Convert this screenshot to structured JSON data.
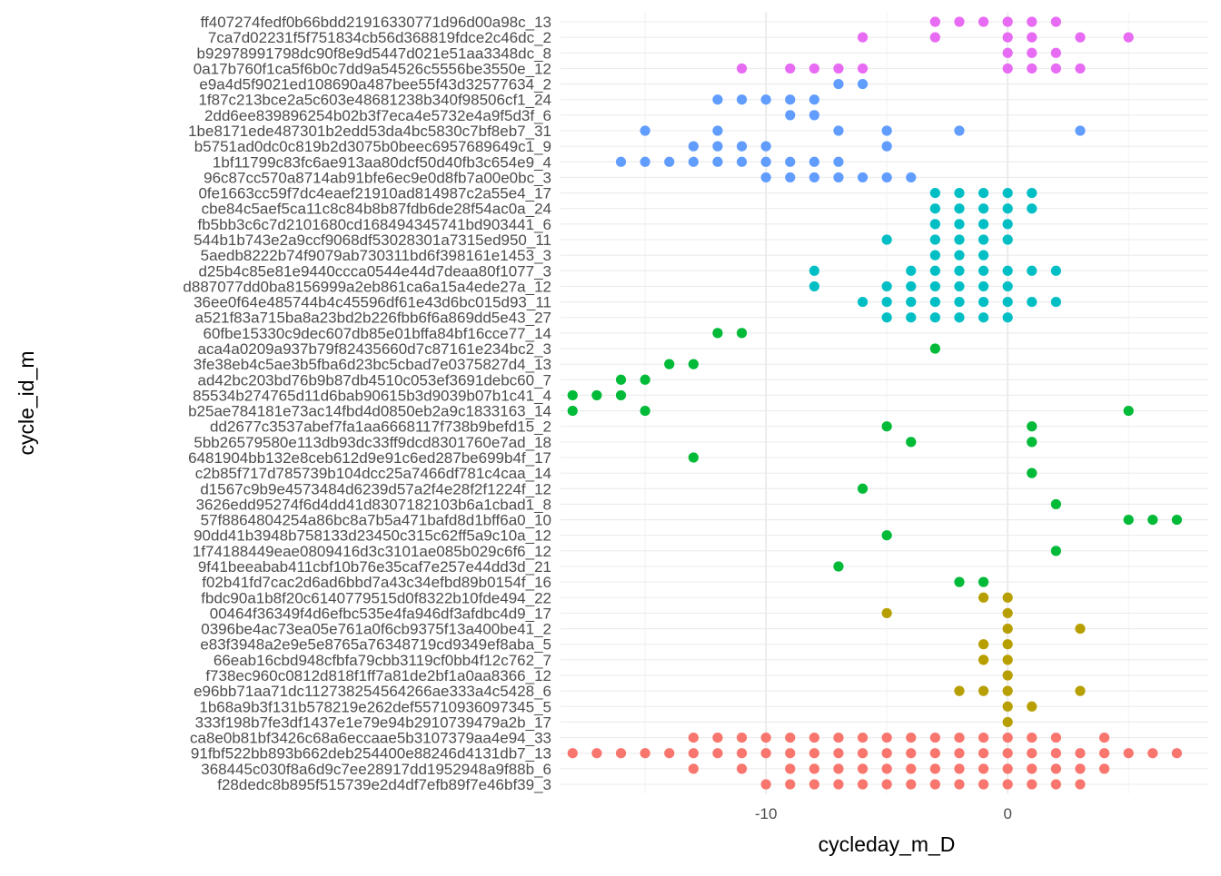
{
  "chart_data": {
    "type": "scatter",
    "title": "",
    "xlabel": "cycleday_m_D",
    "ylabel": "cycle_id_m",
    "xlim": [
      -18.5,
      8.3
    ],
    "x_ticks": [
      -10,
      0
    ],
    "x_tick_labels": [
      "-10",
      "0"
    ],
    "x_minor_ticks": [
      -15,
      -5,
      5
    ],
    "grid": true,
    "legend": "none",
    "categories": [
      "ff407274fedf0b66bdd21916330771d96d00a98c_13",
      "7ca7d02231f5f751834cb56d368819fdce2c46dc_2",
      "b92978991798dc90f8e9d5447d021e51aa3348dc_8",
      "0a17b760f1ca5f6b0c7dd9a54526c5556be3550e_12",
      "e9a4d5f9021ed108690a487bee55f43d32577634_2",
      "1f87c213bce2a5c603e48681238b340f98506cf1_24",
      "2dd6ee839896254b02b3f7eca4e5732e4a9f5d3f_6",
      "1be8171ede487301b2edd53da4bc5830c7bf8eb7_31",
      "b5751ad0dc0c819b2d3075b0beec6957689649c1_9",
      "1bf11799c83fc6ae913aa80dcf50d40fb3c654e9_4",
      "96c87cc570a8714ab91bfe6ec9e0d8fb7a00e0bc_3",
      "0fe1663cc59f7dc4eaef21910ad814987c2a55e4_17",
      "cbe84c5aef5ca11c8c84b8b87fdb6de28f54ac0a_24",
      "fb5bb3c6c7d2101680cd168494345741bd903441_6",
      "544b1b743e2a9ccf9068df53028301a7315ed950_11",
      "5aedb8222b74f9079ab730311bd6f398161e1453_3",
      "d25b4c85e81e9440ccca0544e44d7deaa80f1077_3",
      "d887077dd0ba8156999a2eb861ca6a15a4ede27a_12",
      "36ee0f64e485744b4c45596df61e43d6bc015d93_11",
      "a521f83a715ba8a23bd2b226fbb6f6a869dd5e43_27",
      "60fbe15330c9dec607db85e01bffa84bf16cce77_14",
      "aca4a0209a937b79f82435660d7c87161e234bc2_3",
      "3fe38eb4c5ae3b5fba6d23bc5cbad7e0375827d4_13",
      "ad42bc203bd76b9b87db4510c053ef3691debc60_7",
      "85534b274765d11d6bab90615b3d9039b07b1c41_4",
      "b25ae784181e73ac14fbd4d0850eb2a9c1833163_14",
      "dd2677c3537abef7fa1aa6668117f738b9befd15_2",
      "5bb26579580e113db93dc33ff9dcd8301760e7ad_18",
      "6481904bb132e8ceb612d9e91c6ed287be699b4f_17",
      "c2b85f717d785739b104dcc25a7466df781c4caa_14",
      "d1567c9b9e4573484d6239d57a2f4e28f2f1224f_12",
      "3626edd95274f6d4dd41d8307182103b6a1cbad1_8",
      "57f8864804254a86bc8a7b5a471bafd8d1bff6a0_10",
      "90dd41b3948b758133d23450c315c62ff5a9c10a_12",
      "1f74188449eae0809416d3c3101ae085b029c6f6_12",
      "9f41beeabab411cbf10b76e35caf7e257e44dd3d_21",
      "f02b41fd7cac2d6ad6bbd7a43c34efbd89b0154f_16",
      "fbdc90a1b8f20c6140779515d0f8322b10fde494_22",
      "00464f36349f4d6efbc535e4fa946df3afdbc4d9_17",
      "0396be4ac73ea05e761a0f6cb9375f13a400be41_2",
      "e83f3948a2e9e5e8765a76348719cd9349ef8aba_5",
      "66eab16cbd948cfbfa79cbb3119cf0bb4f12c762_7",
      "f738ec960c0812d818f1ff7a81de2bf1a0aa8366_12",
      "e96bb71aa71dc112738254564266ae333a4c5428_6",
      "1b68a9b3f131b578219e262def55710936097345_5",
      "333f198b7fe3df1437e1e79e94b2910739479a2b_17",
      "ca8e0b81bf3426c68a6eccaae5b3107379aa4e94_33",
      "91fbf522bb893b662deb254400e88246d4131db7_13",
      "368445c030f8a6d9c7ee28917dd1952948a9f88b_6",
      "f28dedc8b895f515739e2d4df7efb89f7e46bf39_3"
    ],
    "series": [
      {
        "color": "#E76BF3",
        "points": [
          {
            "y": "ff407274fedf0b66bdd21916330771d96d00a98c_13",
            "x": [
              -3,
              -2,
              -1,
              0,
              1,
              2
            ]
          },
          {
            "y": "7ca7d02231f5f751834cb56d368819fdce2c46dc_2",
            "x": [
              -6,
              -3,
              0,
              1,
              3,
              5
            ]
          },
          {
            "y": "b92978991798dc90f8e9d5447d021e51aa3348dc_8",
            "x": [
              0,
              1,
              2
            ]
          },
          {
            "y": "0a17b760f1ca5f6b0c7dd9a54526c5556be3550e_12",
            "x": [
              -11,
              -9,
              -8,
              -7,
              -6,
              0,
              1,
              2,
              3
            ]
          }
        ]
      },
      {
        "color": "#619CFF",
        "points": [
          {
            "y": "e9a4d5f9021ed108690a487bee55f43d32577634_2",
            "x": [
              -7,
              -6
            ]
          },
          {
            "y": "1f87c213bce2a5c603e48681238b340f98506cf1_24",
            "x": [
              -12,
              -11,
              -10,
              -9,
              -8
            ]
          },
          {
            "y": "2dd6ee839896254b02b3f7eca4e5732e4a9f5d3f_6",
            "x": [
              -9,
              -8
            ]
          },
          {
            "y": "1be8171ede487301b2edd53da4bc5830c7bf8eb7_31",
            "x": [
              -15,
              -12,
              -7,
              -5,
              -2,
              3
            ]
          },
          {
            "y": "b5751ad0dc0c819b2d3075b0beec6957689649c1_9",
            "x": [
              -13,
              -12,
              -11,
              -10,
              -5
            ]
          },
          {
            "y": "1bf11799c83fc6ae913aa80dcf50d40fb3c654e9_4",
            "x": [
              -16,
              -15,
              -14,
              -13,
              -12,
              -11,
              -10,
              -9,
              -8,
              -7
            ]
          },
          {
            "y": "96c87cc570a8714ab91bfe6ec9e0d8fb7a00e0bc_3",
            "x": [
              -10,
              -9,
              -8,
              -7,
              -6,
              -5,
              -4
            ]
          }
        ]
      },
      {
        "color": "#00BFC4",
        "points": [
          {
            "y": "0fe1663cc59f7dc4eaef21910ad814987c2a55e4_17",
            "x": [
              -3,
              -2,
              -1,
              0,
              1
            ]
          },
          {
            "y": "cbe84c5aef5ca11c8c84b8b87fdb6de28f54ac0a_24",
            "x": [
              -3,
              -2,
              -1,
              0,
              1
            ]
          },
          {
            "y": "fb5bb3c6c7d2101680cd168494345741bd903441_6",
            "x": [
              -3,
              -2,
              -1,
              0
            ]
          },
          {
            "y": "544b1b743e2a9ccf9068df53028301a7315ed950_11",
            "x": [
              -5,
              -3,
              -2,
              -1,
              0
            ]
          },
          {
            "y": "5aedb8222b74f9079ab730311bd6f398161e1453_3",
            "x": [
              -3,
              -2,
              -1
            ]
          },
          {
            "y": "d25b4c85e81e9440ccca0544e44d7deaa80f1077_3",
            "x": [
              -8,
              -4,
              -3,
              -2,
              -1,
              0,
              1,
              2
            ]
          },
          {
            "y": "d887077dd0ba8156999a2eb861ca6a15a4ede27a_12",
            "x": [
              -8,
              -5,
              -4,
              -3,
              -2,
              -1,
              0
            ]
          },
          {
            "y": "36ee0f64e485744b4c45596df61e43d6bc015d93_11",
            "x": [
              -6,
              -5,
              -4,
              -3,
              -2,
              -1,
              0,
              1,
              2
            ]
          },
          {
            "y": "a521f83a715ba8a23bd2b226fbb6f6a869dd5e43_27",
            "x": [
              -5,
              -4,
              -3,
              -2,
              -1,
              0
            ]
          }
        ]
      },
      {
        "color": "#00BA38",
        "points": [
          {
            "y": "60fbe15330c9dec607db85e01bffa84bf16cce77_14",
            "x": [
              -12,
              -11
            ]
          },
          {
            "y": "aca4a0209a937b79f82435660d7c87161e234bc2_3",
            "x": [
              -3
            ]
          },
          {
            "y": "3fe38eb4c5ae3b5fba6d23bc5cbad7e0375827d4_13",
            "x": [
              -14,
              -13
            ]
          },
          {
            "y": "ad42bc203bd76b9b87db4510c053ef3691debc60_7",
            "x": [
              -16,
              -15
            ]
          },
          {
            "y": "85534b274765d11d6bab90615b3d9039b07b1c41_4",
            "x": [
              -18,
              -17,
              -16
            ]
          },
          {
            "y": "b25ae784181e73ac14fbd4d0850eb2a9c1833163_14",
            "x": [
              -18,
              -15,
              5
            ]
          },
          {
            "y": "dd2677c3537abef7fa1aa6668117f738b9befd15_2",
            "x": [
              -5,
              1
            ]
          },
          {
            "y": "5bb26579580e113db93dc33ff9dcd8301760e7ad_18",
            "x": [
              -4,
              1
            ]
          },
          {
            "y": "6481904bb132e8ceb612d9e91c6ed287be699b4f_17",
            "x": [
              -13
            ]
          },
          {
            "y": "c2b85f717d785739b104dcc25a7466df781c4caa_14",
            "x": [
              1
            ]
          },
          {
            "y": "d1567c9b9e4573484d6239d57a2f4e28f2f1224f_12",
            "x": [
              -6
            ]
          },
          {
            "y": "3626edd95274f6d4dd41d8307182103b6a1cbad1_8",
            "x": [
              2
            ]
          },
          {
            "y": "57f8864804254a86bc8a7b5a471bafd8d1bff6a0_10",
            "x": [
              5,
              6,
              7
            ]
          },
          {
            "y": "90dd41b3948b758133d23450c315c62ff5a9c10a_12",
            "x": [
              -5
            ]
          },
          {
            "y": "1f74188449eae0809416d3c3101ae085b029c6f6_12",
            "x": [
              2
            ]
          },
          {
            "y": "9f41beeabab411cbf10b76e35caf7e257e44dd3d_21",
            "x": [
              -7
            ]
          },
          {
            "y": "f02b41fd7cac2d6ad6bbd7a43c34efbd89b0154f_16",
            "x": [
              -2,
              -1
            ]
          }
        ]
      },
      {
        "color": "#B79F00",
        "points": [
          {
            "y": "fbdc90a1b8f20c6140779515d0f8322b10fde494_22",
            "x": [
              -1,
              0
            ]
          },
          {
            "y": "00464f36349f4d6efbc535e4fa946df3afdbc4d9_17",
            "x": [
              -5,
              0
            ]
          },
          {
            "y": "0396be4ac73ea05e761a0f6cb9375f13a400be41_2",
            "x": [
              0,
              3
            ]
          },
          {
            "y": "e83f3948a2e9e5e8765a76348719cd9349ef8aba_5",
            "x": [
              -1,
              0
            ]
          },
          {
            "y": "66eab16cbd948cfbfa79cbb3119cf0bb4f12c762_7",
            "x": [
              -1,
              0
            ]
          },
          {
            "y": "f738ec960c0812d818f1ff7a81de2bf1a0aa8366_12",
            "x": [
              0
            ]
          },
          {
            "y": "e96bb71aa71dc112738254564266ae333a4c5428_6",
            "x": [
              -2,
              -1,
              0,
              3
            ]
          },
          {
            "y": "1b68a9b3f131b578219e262def55710936097345_5",
            "x": [
              0,
              1
            ]
          },
          {
            "y": "333f198b7fe3df1437e1e79e94b2910739479a2b_17",
            "x": [
              0
            ]
          }
        ]
      },
      {
        "color": "#F8766D",
        "points": [
          {
            "y": "ca8e0b81bf3426c68a6eccaae5b3107379aa4e94_33",
            "x": [
              -13,
              -12,
              -11,
              -10,
              -9,
              -8,
              -7,
              -6,
              -5,
              -4,
              -3,
              -2,
              -1,
              0,
              1,
              2,
              4
            ]
          },
          {
            "y": "91fbf522bb893b662deb254400e88246d4131db7_13",
            "x": [
              -18,
              -17,
              -16,
              -15,
              -14,
              -13,
              -12,
              -11,
              -10,
              -9,
              -8,
              -7,
              -6,
              -5,
              -4,
              -3,
              -2,
              -1,
              0,
              1,
              2,
              3,
              4,
              5,
              6,
              7
            ]
          },
          {
            "y": "368445c030f8a6d9c7ee28917dd1952948a9f88b_6",
            "x": [
              -13,
              -11,
              -9,
              -8,
              -7,
              -6,
              -5,
              -4,
              -3,
              -2,
              -1,
              0,
              1,
              2,
              3,
              4
            ]
          },
          {
            "y": "f28dedc8b895f515739e2d4df7efb89f7e46bf39_3",
            "x": [
              -10,
              -9,
              -8,
              -7,
              -6,
              -5,
              -4,
              -3,
              -2,
              -1,
              0,
              1,
              2,
              3
            ]
          }
        ]
      }
    ]
  }
}
